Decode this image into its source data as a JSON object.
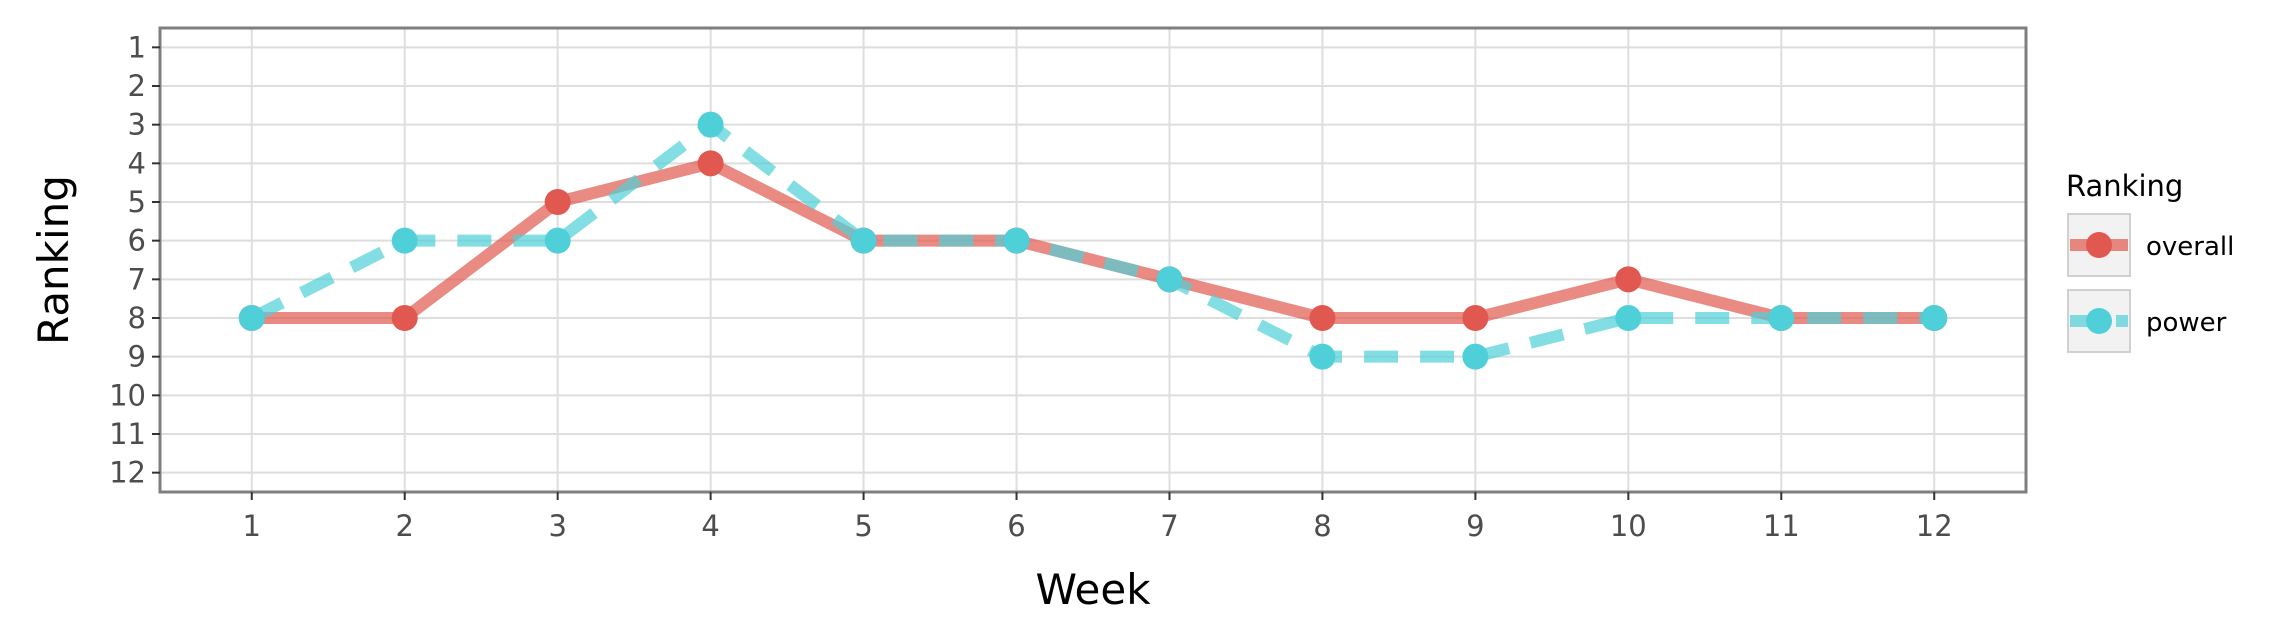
{
  "chart_data": {
    "type": "line",
    "xlabel": "Week",
    "ylabel": "Ranking",
    "x": [
      1,
      2,
      3,
      4,
      5,
      6,
      7,
      8,
      9,
      10,
      11,
      12
    ],
    "x_ticks": [
      "1",
      "2",
      "3",
      "4",
      "5",
      "6",
      "7",
      "8",
      "9",
      "10",
      "11",
      "12"
    ],
    "y_ticks": [
      "1",
      "2",
      "3",
      "4",
      "5",
      "6",
      "7",
      "8",
      "9",
      "10",
      "11",
      "12"
    ],
    "xlim": [
      0.4,
      12.6
    ],
    "ylim": [
      12.5,
      0.5
    ],
    "y_reversed": true,
    "grid": true,
    "legend": {
      "title": "Ranking",
      "position": "right"
    },
    "series": [
      {
        "name": "overall",
        "values": [
          8,
          8,
          5,
          4,
          6,
          6,
          7,
          8,
          8,
          7,
          8,
          8
        ],
        "color": "#e0584f",
        "line_style": "solid"
      },
      {
        "name": "power",
        "values": [
          8,
          6,
          6,
          3,
          6,
          6,
          7,
          9,
          9,
          8,
          8,
          8
        ],
        "color": "#4fd0d9",
        "line_style": "dashed"
      }
    ]
  }
}
